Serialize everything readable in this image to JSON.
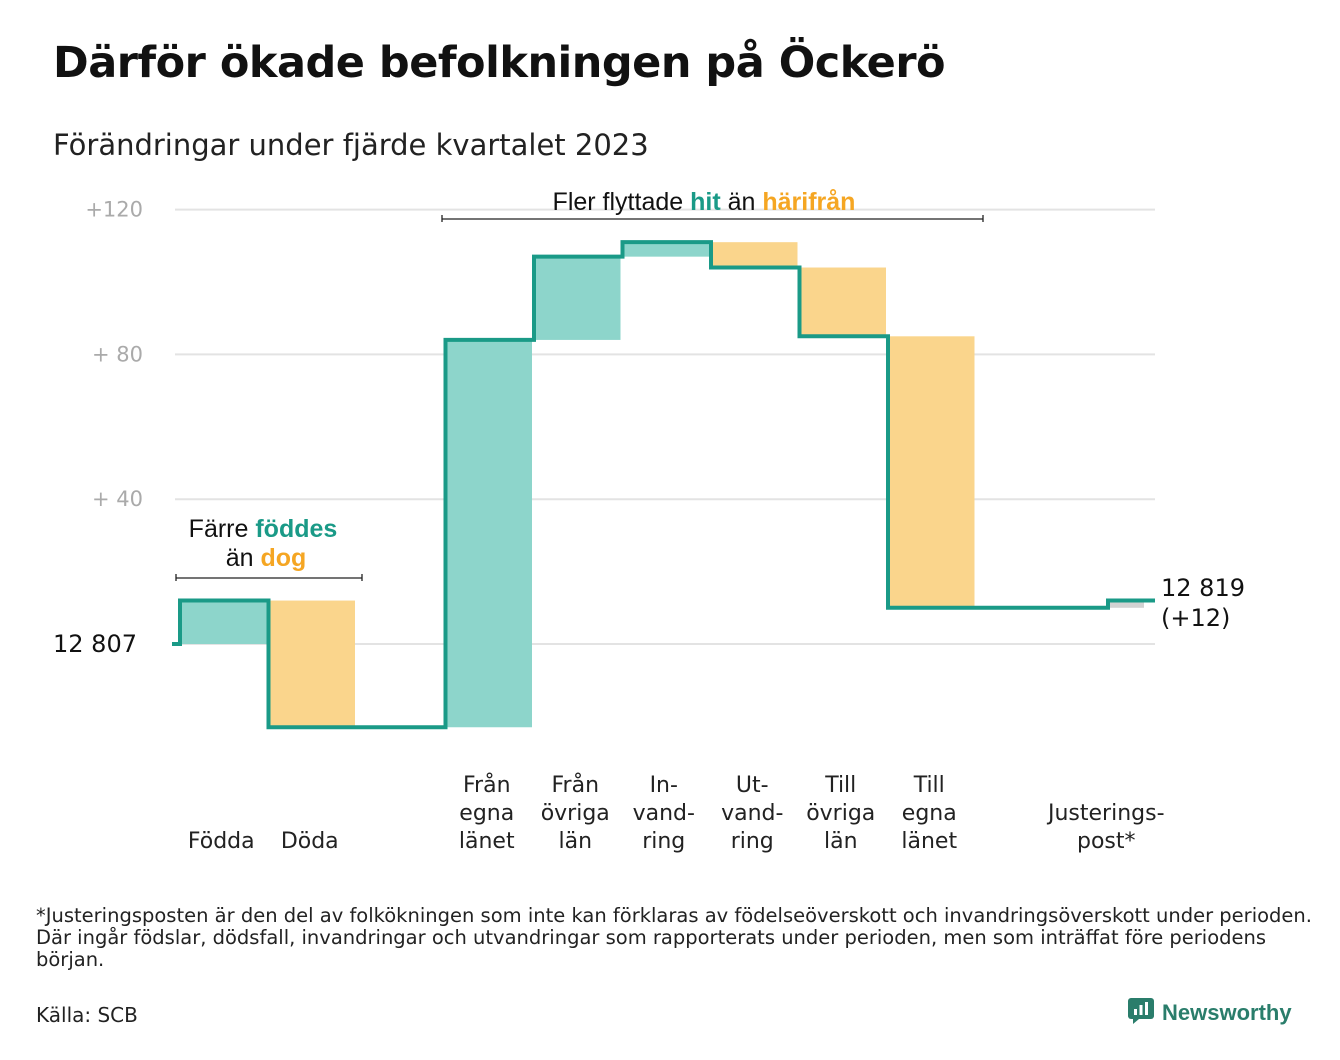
{
  "title": "Därför ökade befolkningen på Öckerö",
  "subtitle": "Förändringar under fjärde kvartalet 2023",
  "chart_data": {
    "type": "waterfall",
    "baseline": 12807,
    "baseline_label": "12  807",
    "end_value": 12819,
    "end_label_lines": [
      "12 819",
      "(+12)"
    ],
    "y_ticks": [
      {
        "value": 120,
        "label": "+120"
      },
      {
        "value": 80,
        "label": "+  80"
      },
      {
        "value": 40,
        "label": "+  40"
      },
      {
        "value": 0,
        "label": ""
      }
    ],
    "steps": [
      {
        "key": "fodda",
        "label_lines": [
          "Födda"
        ],
        "change": 12,
        "kind": "in"
      },
      {
        "key": "doda",
        "label_lines": [
          "Döda"
        ],
        "change": -35,
        "kind": "out"
      },
      {
        "key": "gap",
        "label_lines": [],
        "change": 0,
        "kind": "spacer"
      },
      {
        "key": "fran-egna-lanet",
        "label_lines": [
          "Från",
          "egna",
          "länet"
        ],
        "change": 107,
        "kind": "in"
      },
      {
        "key": "fran-ovriga-lan",
        "label_lines": [
          "Från",
          "övriga",
          "län"
        ],
        "change": 23,
        "kind": "in"
      },
      {
        "key": "invandring",
        "label_lines": [
          "In-",
          "vand-",
          "ring"
        ],
        "change": 4,
        "kind": "in"
      },
      {
        "key": "utvandring",
        "label_lines": [
          "Ut-",
          "vand-",
          "ring"
        ],
        "change": -7,
        "kind": "out"
      },
      {
        "key": "till-ovriga-lan",
        "label_lines": [
          "Till",
          "övriga",
          "län"
        ],
        "change": -19,
        "kind": "out"
      },
      {
        "key": "till-egna-lanet",
        "label_lines": [
          "Till",
          "egna",
          "länet"
        ],
        "change": -75,
        "kind": "out"
      },
      {
        "key": "gap2",
        "label_lines": [],
        "change": 0,
        "kind": "spacer"
      },
      {
        "key": "justeringspost",
        "label_lines": [
          "Justerings-",
          "post*"
        ],
        "change": 2,
        "kind": "adjust"
      }
    ],
    "annotations": [
      {
        "key": "birth",
        "lines": [
          [
            {
              "text": "Färre ",
              "style": "plain"
            },
            {
              "text": "föddes",
              "style": "hit"
            }
          ],
          [
            {
              "text": "än ",
              "style": "plain"
            },
            {
              "text": "dog",
              "style": "away"
            }
          ]
        ]
      },
      {
        "key": "move",
        "lines": [
          [
            {
              "text": "Fler flyttade ",
              "style": "plain"
            },
            {
              "text": "hit",
              "style": "hit"
            },
            {
              "text": " än ",
              "style": "plain"
            },
            {
              "text": "härifrån",
              "style": "away"
            }
          ]
        ]
      }
    ],
    "colors": {
      "in_fill": "#8dd5cb",
      "out_fill": "#fad58c",
      "adjust_fill": "#d2d2d2",
      "line": "#1a9a87",
      "grid": "#e3e3e3",
      "hit_text": "#1a9a87",
      "away_text": "#f5a623"
    }
  },
  "footnote": "*Justeringsposten är den del av folkökningen som inte kan förklaras av födelseöverskott och invandringsöverskott under perioden. Där ingår födslar, dödsfall, invandringar och utvandringar som rapporterats under perioden, men som inträffat före periodens början.",
  "source": "Källa: SCB",
  "brand": {
    "name": "Newsworthy",
    "icon": "newsworthy-logo-icon"
  }
}
